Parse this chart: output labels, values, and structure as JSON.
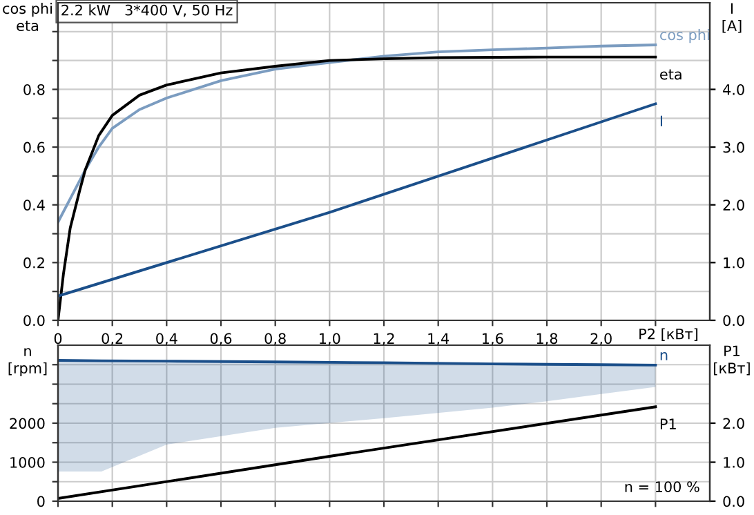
{
  "chart_data": [
    {
      "type": "line",
      "title": "2.2 kW   3*400 V, 50 Hz",
      "xlabel": "P2 [кВт]",
      "ylabel": "cos phi\neta",
      "y2label": "I\n[A]",
      "xlim": [
        0,
        2.4
      ],
      "xticks": [
        0,
        {
          "value": 0.2,
          "label": "0,2"
        },
        {
          "value": 0.4,
          "label": "0,4"
        },
        {
          "value": 0.6,
          "label": "0,6"
        },
        {
          "value": 0.8,
          "label": "0,8"
        },
        {
          "value": 1.0,
          "label": "1,0"
        },
        {
          "value": 1.2,
          "label": "1,2"
        },
        {
          "value": 1.4,
          "label": "1,4"
        },
        {
          "value": 1.6,
          "label": "1,6"
        },
        {
          "value": 1.8,
          "label": "1,8"
        },
        {
          "value": 2.0,
          "label": "2,0"
        },
        {
          "value": 2.2,
          "label": null
        }
      ],
      "ylim": [
        0,
        1.1
      ],
      "yticks": [
        {
          "value": 0,
          "label": "0.0"
        },
        {
          "value": 0.1,
          "label": null
        },
        {
          "value": 0.2,
          "label": "0.2"
        },
        {
          "value": 0.3,
          "label": null
        },
        {
          "value": 0.4,
          "label": "0.4"
        },
        {
          "value": 0.5,
          "label": null
        },
        {
          "value": 0.6,
          "label": "0.6"
        },
        {
          "value": 0.7,
          "label": null
        },
        {
          "value": 0.8,
          "label": "0.8"
        },
        {
          "value": 0.9,
          "label": null
        },
        {
          "value": 1.0,
          "label": null
        }
      ],
      "y2lim": [
        0,
        5.5
      ],
      "y2ticks": [
        {
          "value": 0,
          "label": "0.0"
        },
        {
          "value": 1,
          "label": "1.0"
        },
        {
          "value": 2,
          "label": "2.0"
        },
        {
          "value": 3,
          "label": "3.0"
        },
        {
          "value": 4,
          "label": "4.0"
        }
      ],
      "grid": true,
      "series": [
        {
          "name": "cos phi",
          "color": "#7b9cc0",
          "x": [
            0,
            0.05,
            0.1,
            0.15,
            0.2,
            0.3,
            0.4,
            0.6,
            0.8,
            1.0,
            1.2,
            1.4,
            1.6,
            1.8,
            2.0,
            2.2
          ],
          "values": [
            0.34,
            0.43,
            0.52,
            0.6,
            0.665,
            0.73,
            0.77,
            0.83,
            0.87,
            0.893,
            0.915,
            0.93,
            0.937,
            0.943,
            0.95,
            0.954
          ]
        },
        {
          "name": "eta",
          "color": "#000000",
          "x": [
            0,
            0.02,
            0.045,
            0.08,
            0.1,
            0.15,
            0.2,
            0.3,
            0.4,
            0.6,
            0.8,
            1.0,
            1.2,
            1.4,
            1.8,
            2.2
          ],
          "values": [
            0,
            0.16,
            0.32,
            0.45,
            0.52,
            0.64,
            0.71,
            0.78,
            0.815,
            0.857,
            0.88,
            0.9,
            0.906,
            0.91,
            0.912,
            0.912
          ]
        },
        {
          "name": "I",
          "color": "#1b4f8a",
          "axis": "y2",
          "x": [
            0,
            1.0,
            2.2
          ],
          "values": [
            0.42,
            1.87,
            3.75
          ]
        }
      ]
    },
    {
      "type": "line",
      "ylabel": "n\n[rpm]",
      "y2label": "P1\n[кВт]",
      "xlim": [
        0,
        2.4
      ],
      "tick_labels": "y",
      "xticks": [
        {
          "value": 0,
          "label": null
        },
        {
          "value": 0.2,
          "label": null
        },
        {
          "value": 0.4,
          "label": null
        },
        {
          "value": 0.6,
          "label": null
        },
        {
          "value": 0.8,
          "label": null
        },
        {
          "value": 1.0,
          "label": null
        },
        {
          "value": 1.2,
          "label": null
        },
        {
          "value": 1.4,
          "label": null
        },
        {
          "value": 1.6,
          "label": null
        },
        {
          "value": 1.8,
          "label": null
        },
        {
          "value": 2.0,
          "label": null
        },
        {
          "value": 2.2,
          "label": null
        }
      ],
      "ylim": [
        0,
        4000
      ],
      "yticks": [
        0,
        {
          "value": 500,
          "label": null
        },
        1000,
        {
          "value": 1500,
          "label": null
        },
        2000,
        {
          "value": 2500,
          "label": null
        },
        {
          "value": 3000,
          "label": null
        },
        {
          "value": 3500,
          "label": null
        }
      ],
      "y2lim": [
        0,
        4.0
      ],
      "y2ticks": [
        {
          "value": 0,
          "label": "0.0"
        },
        {
          "value": 1,
          "label": "1.0"
        },
        {
          "value": 2,
          "label": "2.0"
        }
      ],
      "grid": true,
      "annotations": [
        "n = 100 %"
      ],
      "series": [
        {
          "name": "n",
          "color": "#1b4f8a",
          "x": [
            0,
            0.16,
            0.4,
            0.8,
            1.2,
            1.6,
            1.8,
            2.0,
            2.2
          ],
          "values": [
            3610,
            3600,
            3590,
            3570,
            3550,
            3520,
            3510,
            3500,
            3490
          ],
          "lower": [
            760,
            760,
            1450,
            1880,
            2130,
            2400,
            2560,
            2750,
            2930
          ],
          "upper": [
            3610,
            3600,
            3590,
            3570,
            3550,
            3520,
            3510,
            3500,
            3490
          ]
        },
        {
          "name": "P1",
          "color": "#000000",
          "axis": "y2",
          "x": [
            0,
            1.0,
            2.2
          ],
          "values": [
            0.07,
            1.15,
            2.42
          ]
        }
      ]
    }
  ]
}
